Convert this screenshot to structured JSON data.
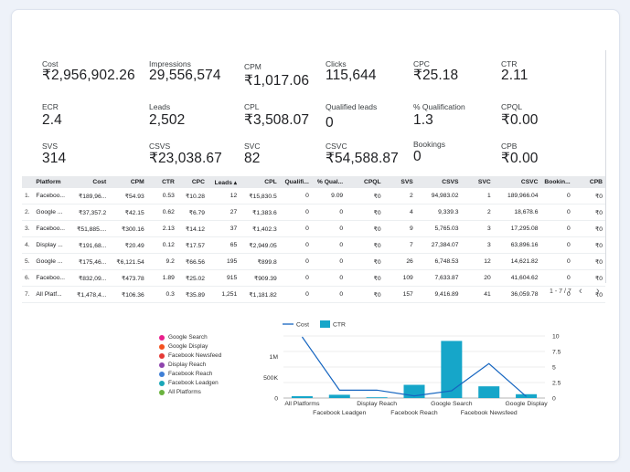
{
  "kpis": [
    {
      "label": "Cost",
      "value": "₹2,956,902.26"
    },
    {
      "label": "Impressions",
      "value": "29,556,574"
    },
    {
      "label": "CPM",
      "value": "₹1,017.06"
    },
    {
      "label": "Clicks",
      "value": "115,644"
    },
    {
      "label": "CPC",
      "value": "₹25.18"
    },
    {
      "label": "CTR",
      "value": "2.11"
    },
    {
      "label": "ECR",
      "value": "2.4"
    },
    {
      "label": "Leads",
      "value": "2,502"
    },
    {
      "label": "CPL",
      "value": "₹3,508.07"
    },
    {
      "label": "Qualified leads",
      "value": "0"
    },
    {
      "label": "% Qualification",
      "value": "1.3"
    },
    {
      "label": "CPQL",
      "value": "₹0.00"
    },
    {
      "label": "SVS",
      "value": "314"
    },
    {
      "label": "CSVS",
      "value": "₹23,038.67"
    },
    {
      "label": "SVC",
      "value": "82"
    },
    {
      "label": "CSVC",
      "value": "₹54,588.87"
    },
    {
      "label": "Bookings",
      "value": "0"
    },
    {
      "label": "CPB",
      "value": "₹0.00"
    }
  ],
  "table": {
    "headers": [
      "",
      "Platform",
      "Cost",
      "CPM",
      "CTR",
      "CPC",
      "Leads ▴",
      "CPL",
      "Qualifi...",
      "% Qual...",
      "CPQL",
      "SVS",
      "CSVS",
      "SVC",
      "CSVC",
      "Bookin...",
      "CPB"
    ],
    "rows": [
      [
        "1.",
        "Faceboo...",
        "₹189,96...",
        "₹54.93",
        "0.53",
        "₹10.28",
        "12",
        "₹15,830.5",
        "0",
        "9.09",
        "₹0",
        "2",
        "94,983.02",
        "1",
        "189,966.04",
        "0",
        "₹0"
      ],
      [
        "2.",
        "Google ...",
        "₹37,357.2",
        "₹42.15",
        "0.62",
        "₹6.79",
        "27",
        "₹1,383.6",
        "0",
        "0",
        "₹0",
        "4",
        "9,339.3",
        "2",
        "18,678.6",
        "0",
        "₹0"
      ],
      [
        "3.",
        "Faceboo...",
        "₹51,885....",
        "₹300.16",
        "2.13",
        "₹14.12",
        "37",
        "₹1,402.3",
        "0",
        "0",
        "₹0",
        "9",
        "5,765.03",
        "3",
        "17,295.08",
        "0",
        "₹0"
      ],
      [
        "4.",
        "Display ...",
        "₹191,68...",
        "₹20.49",
        "0.12",
        "₹17.57",
        "65",
        "₹2,949.05",
        "0",
        "0",
        "₹0",
        "7",
        "27,384.07",
        "3",
        "63,896.16",
        "0",
        "₹0"
      ],
      [
        "5.",
        "Google ...",
        "₹175,46...",
        "₹6,121.54",
        "9.2",
        "₹66.56",
        "195",
        "₹899.8",
        "0",
        "0",
        "₹0",
        "26",
        "6,748.53",
        "12",
        "14,621.82",
        "0",
        "₹0"
      ],
      [
        "6.",
        "Faceboo...",
        "₹832,09...",
        "₹473.78",
        "1.89",
        "₹25.02",
        "915",
        "₹909.39",
        "0",
        "0",
        "₹0",
        "109",
        "7,633.87",
        "20",
        "41,604.62",
        "0",
        "₹0"
      ],
      [
        "7.",
        "All Platf...",
        "₹1,478,4...",
        "₹106.36",
        "0.3",
        "₹35.89",
        "1,251",
        "₹1,181.82",
        "0",
        "0",
        "₹0",
        "157",
        "9,416.89",
        "41",
        "36,059.78",
        "0",
        "₹0"
      ]
    ]
  },
  "pager": {
    "text": "1 - 7 / 7",
    "prev": "‹",
    "next": "›"
  },
  "legend": [
    {
      "name": "Google Search",
      "color": "#e91e8c"
    },
    {
      "name": "Google Display",
      "color": "#f4511e"
    },
    {
      "name": "Facebook Newsfeed",
      "color": "#e53935"
    },
    {
      "name": "Display Reach",
      "color": "#8e44ad"
    },
    {
      "name": "Facebook Reach",
      "color": "#3f7fd6"
    },
    {
      "name": "Facebook Leadgen",
      "color": "#1aa7b8"
    },
    {
      "name": "All Platforms",
      "color": "#6bb33f"
    }
  ],
  "chart_data": {
    "type": "bar",
    "series_legend": [
      {
        "name": "Cost",
        "kind": "line",
        "color": "#1565c0"
      },
      {
        "name": "CTR",
        "kind": "bar",
        "color": "#16a6c9"
      }
    ],
    "categories": [
      "All Platforms",
      "Facebook Leadgen",
      "Display Reach",
      "Facebook Reach",
      "Google Search",
      "Facebook Newsfeed",
      "Google Display"
    ],
    "series": [
      {
        "name": "Cost",
        "values": [
          1478400,
          189960,
          191680,
          51885,
          175460,
          832090,
          37357
        ]
      },
      {
        "name": "CTR",
        "values": [
          0.3,
          0.53,
          0.12,
          2.13,
          9.2,
          1.89,
          0.62
        ]
      }
    ],
    "left_ticks": [
      "0",
      "500K",
      "1M"
    ],
    "right_ticks": [
      "0",
      "2.5",
      "5",
      "7.5",
      "10"
    ],
    "ylim_left": [
      0,
      1500000
    ],
    "ylim_right": [
      0,
      10
    ]
  }
}
